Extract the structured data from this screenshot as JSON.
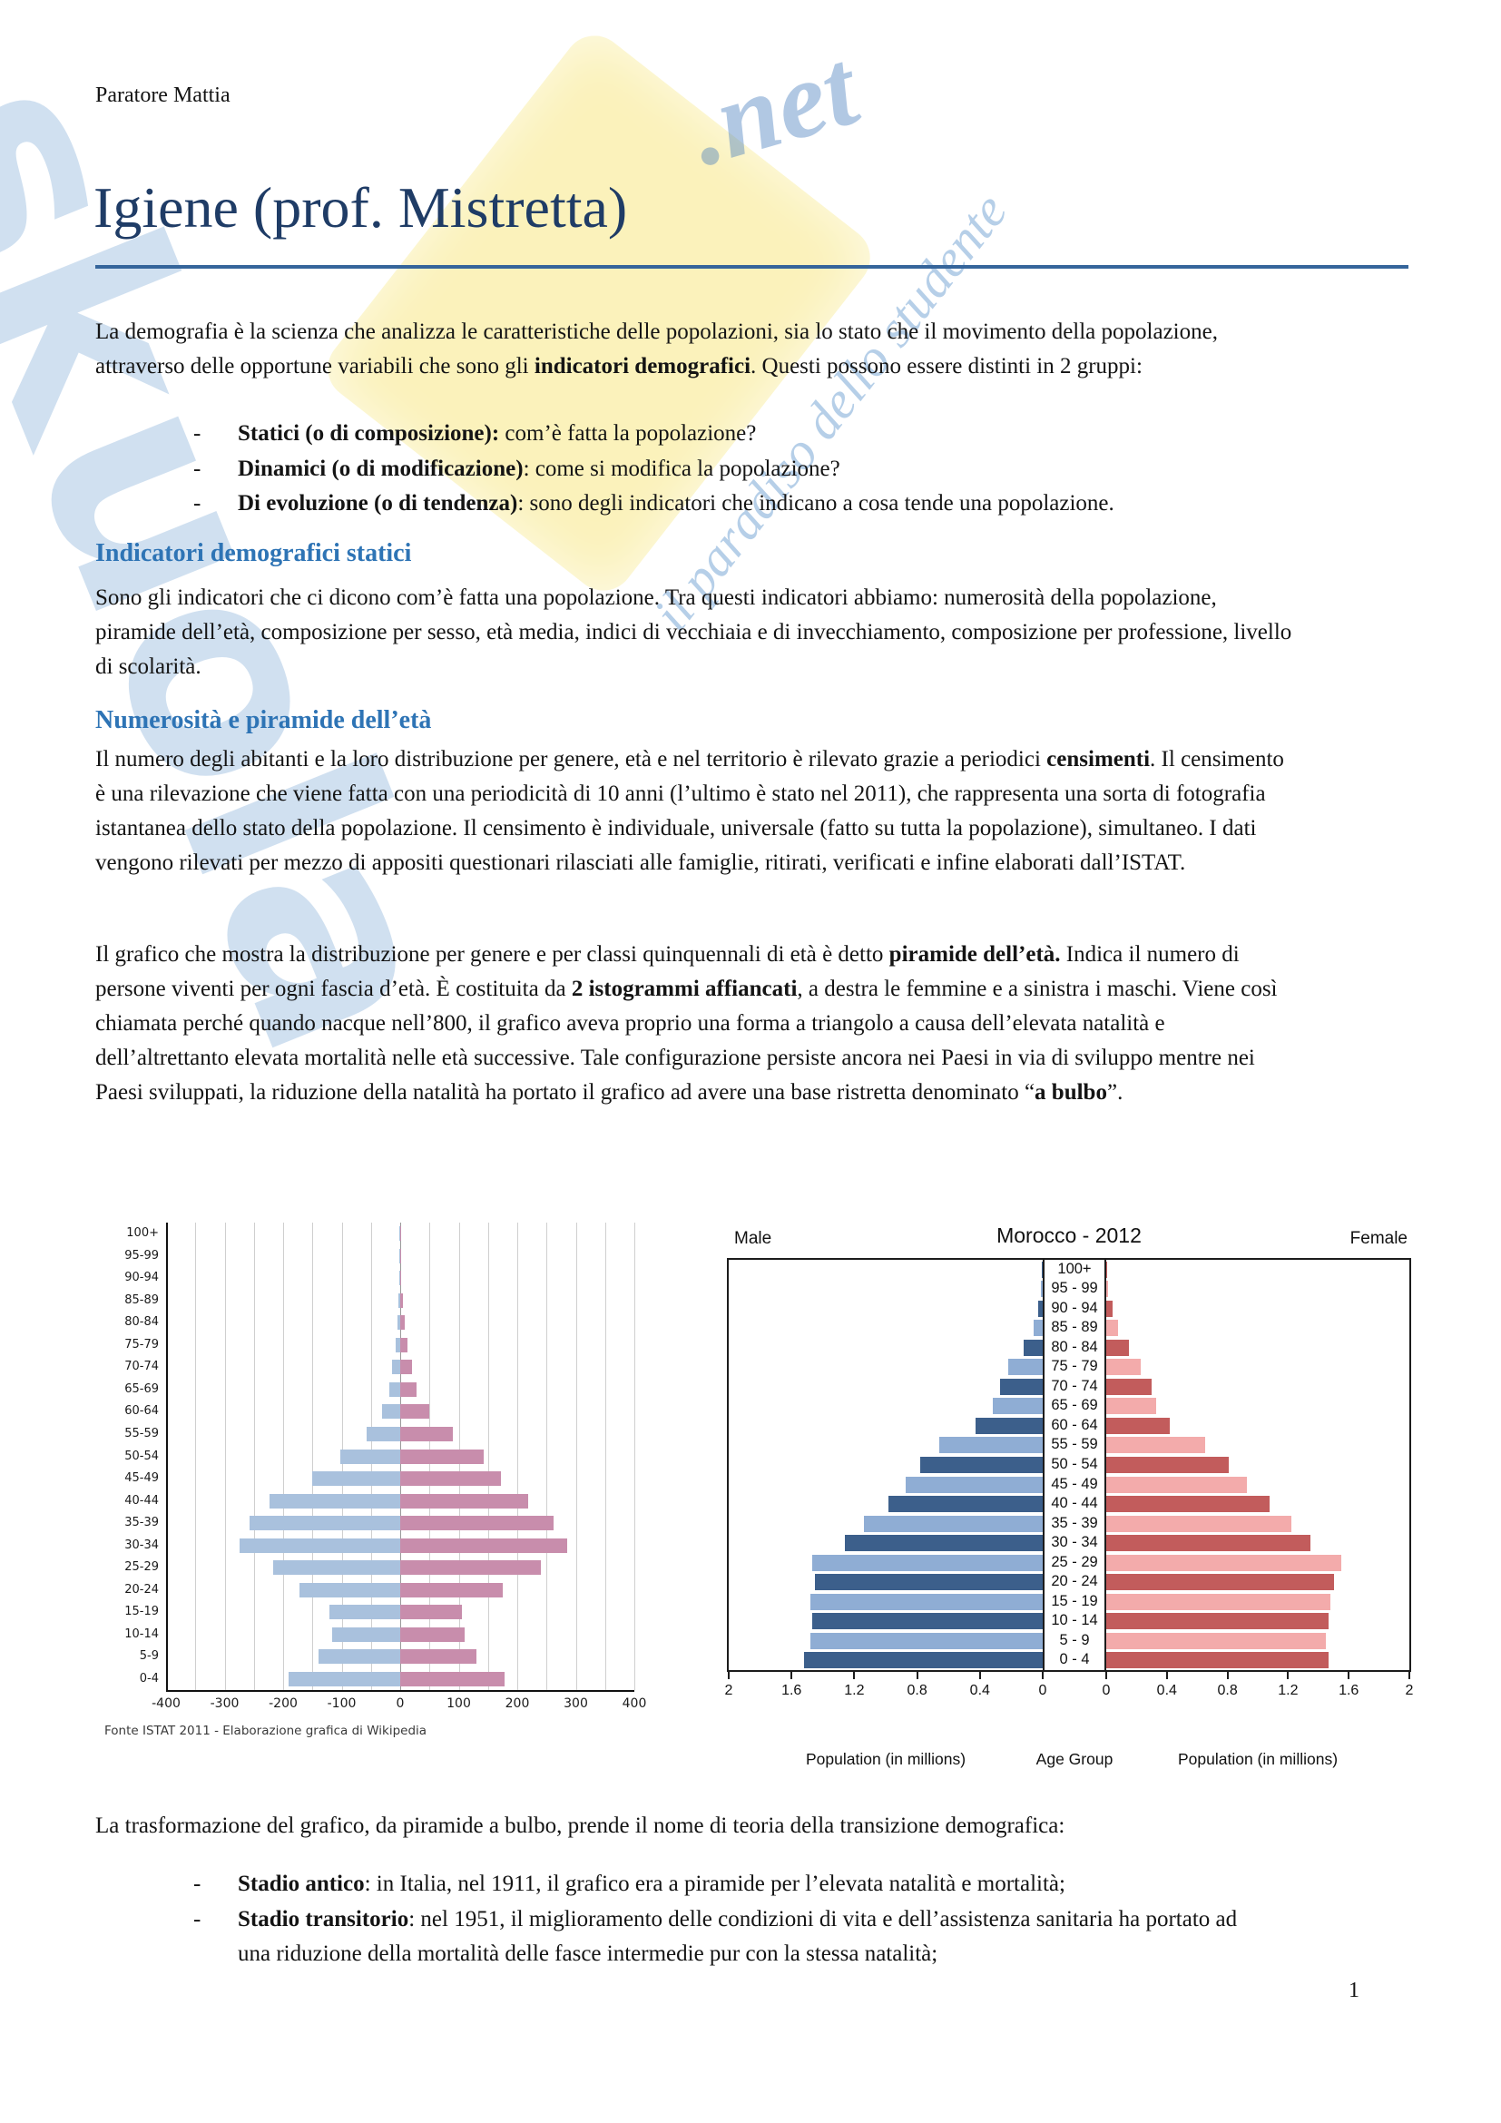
{
  "page": {
    "number": "1"
  },
  "header": {
    "author": "Paratore Mattia"
  },
  "title": "Igiene (prof. Mistretta)",
  "watermark": {
    "brand": "skuola",
    "brand_suffix": ".net",
    "tagline": "il paradiso dello studente"
  },
  "list_marker": "-",
  "content": {
    "p1": [
      {
        "t": "La demografia è la scienza che analizza le caratteristiche delle popolazioni, sia lo stato che il movimento della popolazione, attraverso delle opportune variabili che sono gli "
      },
      {
        "t": "indicatori demografici",
        "b": true
      },
      {
        "t": ". Questi possono essere distinti in 2 gruppi:"
      }
    ],
    "list1": [
      [
        {
          "t": "Statici (o di composizione):",
          "b": true
        },
        {
          "t": " com’è fatta la popolazione?"
        }
      ],
      [
        {
          "t": "Dinamici (o di modificazione)",
          "b": true
        },
        {
          "t": ": come si modifica la popolazione?"
        }
      ],
      [
        {
          "t": "Di evoluzione (o di tendenza)",
          "b": true
        },
        {
          "t": ": sono degli indicatori che indicano a cosa tende una popolazione."
        }
      ]
    ],
    "h1": "Indicatori demografici statici",
    "p2": [
      {
        "t": "Sono gli indicatori che ci dicono com’è fatta una popolazione. Tra questi indicatori abbiamo: numerosità della popolazione, piramide dell’età, composizione per sesso, età media, indici di vecchiaia e di invecchiamento, composizione per professione, livello di scolarità."
      }
    ],
    "h2": "Numerosità e piramide dell’età",
    "p3": [
      {
        "t": "Il numero degli abitanti e la loro distribuzione per genere, età e nel territorio è rilevato grazie a periodici "
      },
      {
        "t": "censimenti",
        "b": true
      },
      {
        "t": ". Il censimento è una rilevazione che viene fatta con una periodicità di 10 anni (l’ultimo è stato nel 2011), che rappresenta una sorta di fotografia istantanea dello stato della popolazione. Il censimento è individuale, universale (fatto su tutta la popolazione), simultaneo. I dati vengono rilevati per mezzo di appositi questionari rilasciati alle famiglie, ritirati, verificati e infine elaborati dall’ISTAT."
      }
    ],
    "p4": [
      {
        "t": "Il grafico che mostra la distribuzione per genere e per classi quinquennali di età è detto "
      },
      {
        "t": "piramide dell’età.",
        "b": true
      },
      {
        "t": " Indica il numero di persone viventi per ogni fascia d’età. È costituita da "
      },
      {
        "t": "2 istogrammi affiancati",
        "b": true
      },
      {
        "t": ", a destra le femmine e a sinistra i maschi. Viene così chiamata perché quando nacque nell’800, il grafico aveva proprio una forma a triangolo a causa dell’elevata natalità e dell’altrettanto elevata mortalità nelle età successive. Tale configurazione persiste ancora nei Paesi in via di sviluppo mentre nei Paesi sviluppati, la riduzione della natalità ha portato il grafico ad avere una base ristretta denominato “"
      },
      {
        "t": "a bulbo",
        "b": true
      },
      {
        "t": "”."
      }
    ],
    "p5": [
      {
        "t": "La trasformazione del grafico, da piramide a bulbo, prende il nome di teoria della transizione demografica:"
      }
    ],
    "list2": [
      [
        {
          "t": "Stadio antico",
          "b": true
        },
        {
          "t": ": in Italia, nel 1911, il grafico era a piramide per l’elevata natalità e mortalità;"
        }
      ],
      [
        {
          "t": "Stadio transitorio",
          "b": true
        },
        {
          "t": ": nel 1951, il miglioramento delle condizioni di vita e dell’assistenza sanitaria ha portato ad una riduzione della mortalità delle fasce intermedie pur con la stessa natalità;"
        }
      ]
    ]
  },
  "chart_data": [
    {
      "type": "bar",
      "variant": "population_pyramid",
      "source_note": "Fonte ISTAT 2011 - Elaborazione grafica di Wikipedia",
      "age_groups": [
        "100+",
        "95-99",
        "90-94",
        "85-89",
        "80-84",
        "75-79",
        "70-74",
        "65-69",
        "60-64",
        "55-59",
        "50-54",
        "45-49",
        "40-44",
        "35-39",
        "30-34",
        "25-29",
        "20-24",
        "15-19",
        "10-14",
        "5-9",
        "0-4"
      ],
      "series": [
        {
          "side": "left",
          "color": "#a9c1dd",
          "values": [
            1,
            1,
            2,
            3,
            5,
            8,
            14,
            18,
            31,
            58,
            103,
            150,
            224,
            257,
            275,
            217,
            172,
            121,
            117,
            139,
            190
          ]
        },
        {
          "side": "right",
          "color": "#c88dac",
          "values": [
            1,
            1,
            2,
            4,
            8,
            12,
            20,
            28,
            49,
            90,
            142,
            172,
            219,
            262,
            285,
            240,
            175,
            106,
            110,
            131,
            179
          ]
        }
      ],
      "xlim": [
        -400,
        400
      ],
      "xticks": [
        "-400",
        "-300",
        "-200",
        "-100",
        "0",
        "100",
        "200",
        "300",
        "400"
      ],
      "grid_step": 50
    },
    {
      "type": "bar",
      "variant": "population_pyramid",
      "title": "Morocco - 2012",
      "male_header": "Male",
      "female_header": "Female",
      "center_label": "Age Group",
      "xlabel": "Population (in millions)",
      "age_groups": [
        "100+",
        "95 - 99",
        "90 - 94",
        "85 - 89",
        "80 - 84",
        "75 - 79",
        "70 - 74",
        "65 - 69",
        "60 - 64",
        "55 - 59",
        "50 - 54",
        "45 - 49",
        "40 - 44",
        "35 - 39",
        "30 - 34",
        "25 - 29",
        "20 - 24",
        "15 - 19",
        "10 - 14",
        "5 - 9",
        "0 - 4"
      ],
      "series": [
        {
          "side": "left",
          "colors": [
            "#3c5f8b",
            "#8fadd4"
          ],
          "values": [
            0.005,
            0.01,
            0.03,
            0.06,
            0.12,
            0.22,
            0.27,
            0.32,
            0.43,
            0.66,
            0.78,
            0.87,
            0.98,
            1.14,
            1.26,
            1.47,
            1.45,
            1.48,
            1.47,
            1.48,
            1.52
          ]
        },
        {
          "side": "right",
          "colors": [
            "#c25c5c",
            "#f3abab"
          ],
          "values": [
            0.005,
            0.01,
            0.04,
            0.08,
            0.15,
            0.23,
            0.3,
            0.33,
            0.42,
            0.65,
            0.81,
            0.93,
            1.08,
            1.22,
            1.35,
            1.55,
            1.5,
            1.48,
            1.47,
            1.45,
            1.47
          ]
        }
      ],
      "xlim": [
        0,
        2
      ],
      "xticks": [
        "2",
        "1.6",
        "1.2",
        "0.8",
        "0.4",
        "0"
      ],
      "xticks_right": [
        "0",
        "0.4",
        "0.8",
        "1.2",
        "1.6",
        "2"
      ]
    }
  ]
}
